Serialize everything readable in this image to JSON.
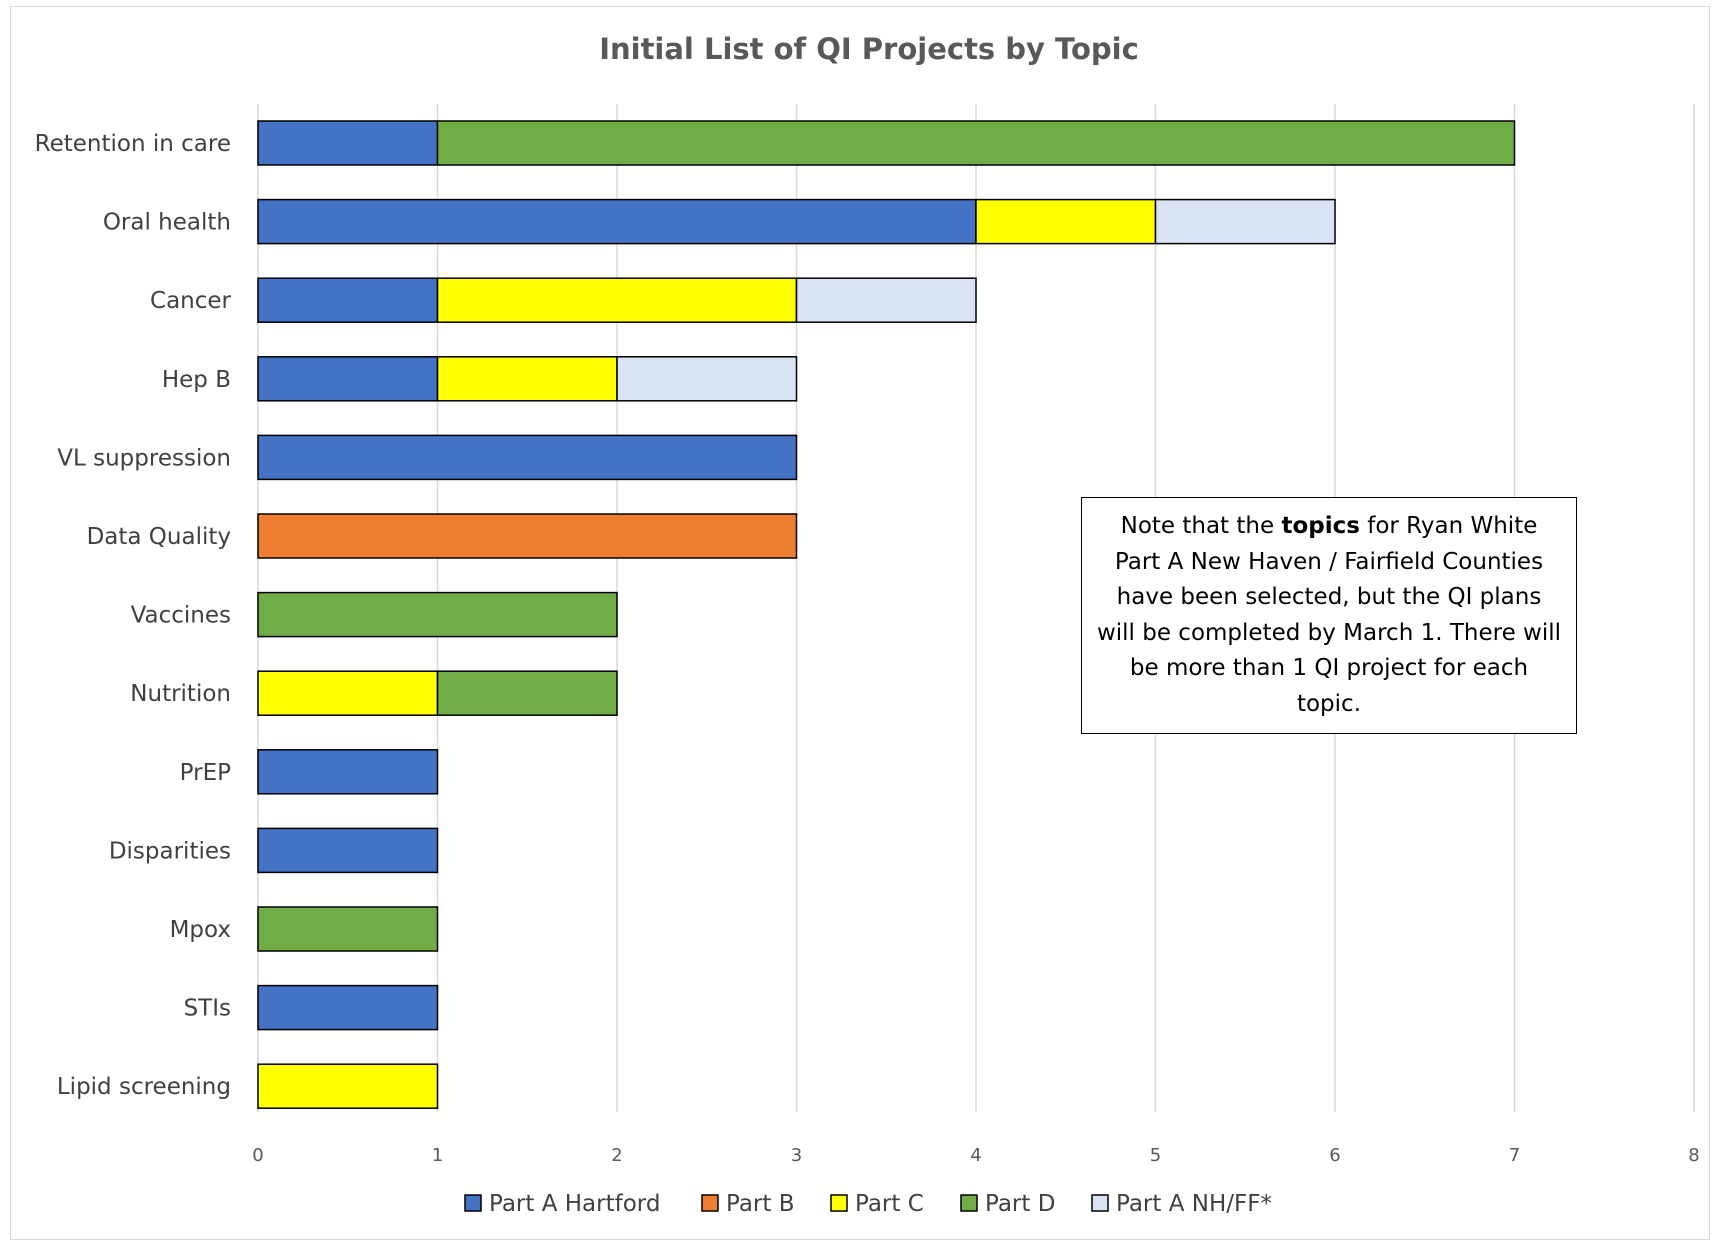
{
  "chart_data": {
    "type": "bar",
    "orientation": "horizontal",
    "stacked": true,
    "title": "Initial List of QI Projects by Topic",
    "xlabel": "",
    "ylabel": "",
    "xlim": [
      0,
      8
    ],
    "xticks": [
      0,
      1,
      2,
      3,
      4,
      5,
      6,
      7,
      8
    ],
    "grid": "vertical",
    "legend_position": "bottom",
    "categories": [
      "Retention in care",
      "Oral health",
      "Cancer",
      "Hep B",
      "VL suppression",
      "Data Quality",
      "Vaccines",
      "Nutrition",
      "PrEP",
      "Disparities",
      "Mpox",
      "STIs",
      "Lipid screening"
    ],
    "series": [
      {
        "name": "Part A Hartford",
        "color": "#4472C4",
        "values": [
          1,
          4,
          1,
          1,
          3,
          0,
          0,
          0,
          1,
          1,
          0,
          1,
          0
        ]
      },
      {
        "name": "Part B",
        "color": "#ED7D31",
        "values": [
          0,
          0,
          0,
          0,
          0,
          3,
          0,
          0,
          0,
          0,
          0,
          0,
          0
        ]
      },
      {
        "name": "Part C",
        "color": "#FFFF00",
        "values": [
          0,
          1,
          2,
          1,
          0,
          0,
          0,
          1,
          0,
          0,
          0,
          0,
          1
        ]
      },
      {
        "name": "Part D",
        "color": "#70AD47",
        "values": [
          6,
          0,
          0,
          0,
          0,
          0,
          2,
          1,
          0,
          0,
          1,
          0,
          0
        ]
      },
      {
        "name": "Part A NH/FF*",
        "color": "#DAE3F3",
        "values": [
          0,
          1,
          1,
          1,
          0,
          0,
          0,
          0,
          0,
          0,
          0,
          0,
          0
        ]
      }
    ]
  },
  "note": {
    "before": "Note that the ",
    "bold": "topics",
    "after": " for Ryan White Part A New Haven / Fairfield Counties have been selected, but the QI plans will be completed by March 1.  There will be more than 1 QI project for each topic."
  }
}
